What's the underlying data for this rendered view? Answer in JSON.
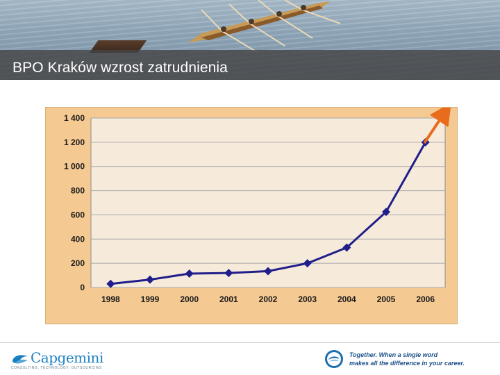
{
  "header": {
    "title": "BPO Kraków wzrost zatrudnienia"
  },
  "footer": {
    "logo_text": "Capgemini",
    "logo_tagline": "CONSULTING. TECHNOLOGY. OUTSOURCING",
    "tagline_line1": "Together. When a single word",
    "tagline_line2": "makes all the difference in your career."
  },
  "colors": {
    "panel_bg": "#f5c992",
    "plot_bg": "#f6eadb",
    "series": "#1f1e8a",
    "arrow": "#e96b1c",
    "brand": "#1b7fbf"
  },
  "chart_data": {
    "type": "line",
    "x": [
      "1998",
      "1999",
      "2000",
      "2001",
      "2002",
      "2003",
      "2004",
      "2005",
      "2006"
    ],
    "series": [
      {
        "values": [
          30,
          65,
          115,
          120,
          135,
          200,
          330,
          625,
          1200
        ]
      }
    ],
    "ylim": [
      0,
      1400
    ],
    "yticks": [
      0,
      200,
      400,
      600,
      800,
      1000,
      1200,
      1400
    ],
    "ytick_labels": [
      "0",
      "200",
      "400",
      "600",
      "800",
      "1 000",
      "1 200",
      "1 400"
    ],
    "grid": true,
    "legend": "none",
    "annotation": "orange upward arrow continuing trend after 2006",
    "title": "",
    "xlabel": "",
    "ylabel": ""
  }
}
